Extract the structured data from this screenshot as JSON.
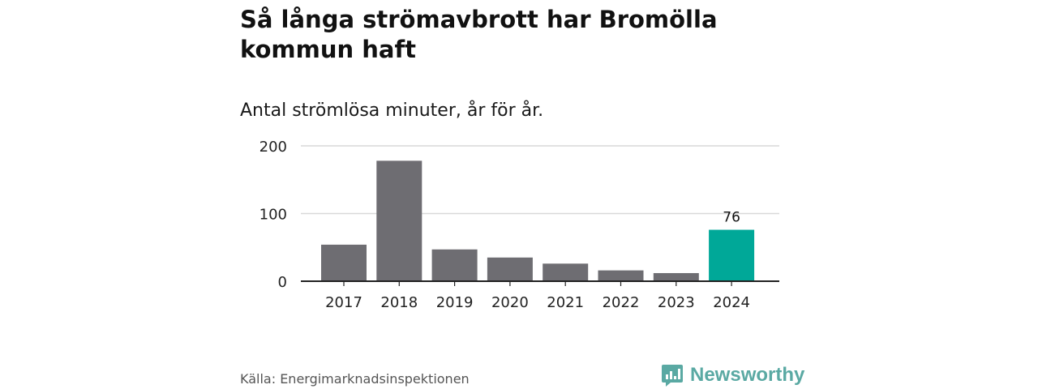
{
  "title": "Så långa strömavbrott har Bromölla kommun haft",
  "subtitle": "Antal strömlösa minuter, år för år.",
  "source": "Källa: Energimarknadsinspektionen",
  "brand": {
    "name": "Newsworthy",
    "color": "#5aa9a3",
    "icon": "bar-chart-speech-bubble-icon"
  },
  "colors": {
    "bar_default": "#6e6d72",
    "bar_highlight": "#00a898",
    "gridline": "#d9d9d9",
    "axis": "#222222"
  },
  "chart_data": {
    "type": "bar",
    "categories": [
      "2017",
      "2018",
      "2019",
      "2020",
      "2021",
      "2022",
      "2023",
      "2024"
    ],
    "values": [
      54,
      178,
      47,
      35,
      26,
      16,
      12,
      76
    ],
    "highlight_index": 7,
    "data_labels": [
      {
        "index": 7,
        "text": "76"
      }
    ],
    "yticks": [
      0,
      100,
      200
    ],
    "ylim": [
      0,
      200
    ],
    "xlabel": "",
    "ylabel": "",
    "grid": true
  }
}
